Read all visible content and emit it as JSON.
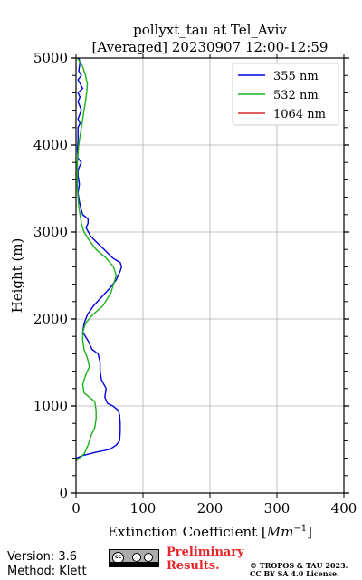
{
  "chart_data": {
    "type": "line",
    "title": "pollyxt_tau at Tel_Aviv",
    "subtitle": "[Averaged] 20230907 12:00-12:59",
    "xlabel": "Extinction Coefficient [Mm⁻¹]",
    "xlabel_main": "Extinction Coefficient [",
    "xlabel_unit": "Mm",
    "xlabel_exp": "−1",
    "xlabel_close": "]",
    "ylabel": "Height (m)",
    "xlim": [
      0,
      400
    ],
    "ylim": [
      0,
      5000
    ],
    "xticks": [
      "0",
      "100",
      "200",
      "300",
      "400"
    ],
    "yticks": [
      "0",
      "1000",
      "2000",
      "3000",
      "4000",
      "5000"
    ],
    "grid": true,
    "legend_position": "top-right",
    "series": [
      {
        "name": "355 nm",
        "color": "#0000e0",
        "x": [
          0,
          10,
          30,
          50,
          60,
          65,
          66,
          66,
          65,
          63,
          55,
          47,
          43,
          45,
          38,
          36,
          36,
          33,
          24,
          18,
          10,
          12,
          17,
          26,
          38,
          50,
          60,
          66,
          68,
          66,
          55,
          42,
          35,
          22,
          15,
          18,
          18,
          10,
          8,
          5,
          3,
          5,
          4,
          3,
          3,
          5,
          8,
          3,
          2,
          3,
          3,
          3,
          6,
          3,
          8,
          3,
          6,
          3,
          10,
          3,
          8,
          4,
          6,
          4
        ],
        "y": [
          400,
          430,
          470,
          500,
          550,
          600,
          700,
          800,
          900,
          950,
          1000,
          1030,
          1100,
          1200,
          1300,
          1400,
          1500,
          1600,
          1650,
          1750,
          1850,
          1950,
          2050,
          2150,
          2250,
          2350,
          2450,
          2550,
          2600,
          2650,
          2700,
          2800,
          2850,
          2950,
          3050,
          3100,
          3150,
          3200,
          3250,
          3350,
          3450,
          3550,
          3600,
          3650,
          3700,
          3750,
          3800,
          3850,
          3950,
          4050,
          4150,
          4200,
          4250,
          4300,
          4400,
          4500,
          4550,
          4600,
          4650,
          4750,
          4800,
          4850,
          4950,
          5000
        ]
      },
      {
        "name": "532 nm",
        "color": "#1ab21a",
        "x": [
          0,
          5,
          12,
          18,
          22,
          28,
          30,
          30,
          28,
          20,
          12,
          10,
          14,
          20,
          17,
          12,
          10,
          10,
          14,
          25,
          40,
          52,
          60,
          56,
          45,
          30,
          20,
          12,
          8,
          6,
          4,
          3,
          2,
          2,
          2,
          2,
          3,
          4,
          6,
          8,
          10,
          12,
          14,
          16,
          17,
          14,
          10,
          6,
          2
        ],
        "y": [
          370,
          400,
          450,
          550,
          650,
          750,
          850,
          950,
          1050,
          1100,
          1150,
          1250,
          1350,
          1450,
          1550,
          1650,
          1750,
          1850,
          1950,
          2050,
          2150,
          2300,
          2500,
          2600,
          2700,
          2800,
          2900,
          3000,
          3100,
          3200,
          3300,
          3400,
          3500,
          3600,
          3700,
          3800,
          3900,
          4000,
          4100,
          4200,
          4300,
          4400,
          4500,
          4600,
          4700,
          4800,
          4900,
          4950,
          5000
        ]
      },
      {
        "name": "1064 nm",
        "color": "#d62728",
        "x": [],
        "y": []
      }
    ]
  },
  "footer": {
    "version": "Version: 3.6",
    "method": "Method: Klett",
    "prelim_line1": "Preliminary",
    "prelim_line2": "Results.",
    "copyright_line1": "© TROPOS & TAU 2023.",
    "copyright_line2": "CC BY SA 4.0 License.",
    "license_badge": "cc-by-sa-icon"
  }
}
